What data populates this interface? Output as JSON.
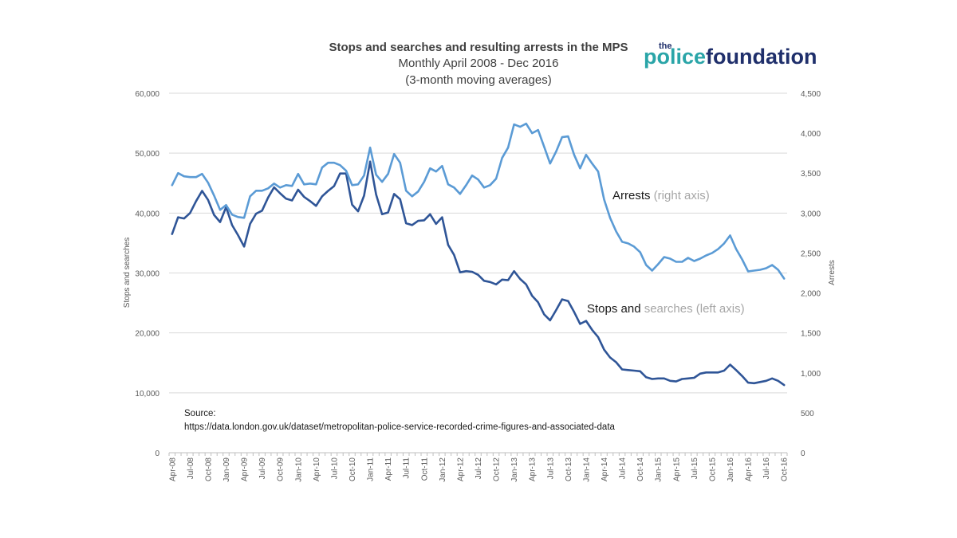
{
  "chart_data": {
    "type": "line",
    "title": "Stops and searches and resulting arrests in the MPS",
    "subtitle": "Monthly April 2008 - Dec 2016",
    "subtitle2": "(3-month moving averages)",
    "ylabel_left": "Stops and searches",
    "ylabel_right": "Arrests",
    "ylim_left": [
      0,
      60000
    ],
    "ylim_right": [
      0,
      4500
    ],
    "yticks_left": [
      "0",
      "10,000",
      "20,000",
      "30,000",
      "40,000",
      "50,000",
      "60,000"
    ],
    "yticks_right": [
      "0",
      "500",
      "1,000",
      "1,500",
      "2,000",
      "2,500",
      "3,000",
      "3,500",
      "4,000",
      "4,500"
    ],
    "grid": true,
    "x_tick_labels": [
      "Apr-08",
      "Jul-08",
      "Oct-08",
      "Jan-09",
      "Apr-09",
      "Jul-09",
      "Oct-09",
      "Jan-10",
      "Apr-10",
      "Jul-10",
      "Oct-10",
      "Jan-11",
      "Apr-11",
      "Jul-11",
      "Oct-11",
      "Jan-12",
      "Apr-12",
      "Jul-12",
      "Oct-12",
      "Jan-13",
      "Apr-13",
      "Jul-13",
      "Oct-13",
      "Jan-14",
      "Apr-14",
      "Jul-14",
      "Oct-14",
      "Jan-15",
      "Apr-15",
      "Jul-15",
      "Oct-15",
      "Jan-16",
      "Apr-16",
      "Jul-16",
      "Oct-16"
    ],
    "series": [
      {
        "name": "Stops and searches",
        "axis": "left",
        "color": "#2f5597",
        "values": [
          36500,
          39300,
          39100,
          40000,
          42000,
          43700,
          42200,
          39700,
          38500,
          41000,
          38000,
          36300,
          34400,
          38200,
          39900,
          40400,
          42600,
          44300,
          43300,
          42400,
          42100,
          43900,
          42700,
          42000,
          41200,
          42800,
          43700,
          44500,
          46600,
          46600,
          41400,
          40300,
          42900,
          48600,
          43100,
          39800,
          40100,
          43200,
          42300,
          38300,
          38000,
          38700,
          38800,
          39800,
          38200,
          39300,
          34700,
          33000,
          30100,
          30300,
          30200,
          29700,
          28700,
          28500,
          28100,
          28900,
          28800,
          30300,
          29000,
          28100,
          26200,
          25100,
          23100,
          22100,
          23800,
          25600,
          25300,
          23500,
          21500,
          22000,
          20500,
          19300,
          17200,
          15900,
          15100,
          13900,
          13800,
          13700,
          13600,
          12600,
          12300,
          12400,
          12400,
          12000,
          11900,
          12300,
          12400,
          12500,
          13200,
          13400,
          13400,
          13400,
          13700,
          14700,
          13800,
          12800,
          11700,
          11600,
          11800,
          12000,
          12400,
          12000,
          11300
        ]
      },
      {
        "name": "Arrests",
        "axis": "right",
        "color": "#5b9bd5",
        "values": [
          3350,
          3500,
          3460,
          3450,
          3450,
          3490,
          3380,
          3220,
          3040,
          3100,
          2980,
          2950,
          2940,
          3210,
          3280,
          3280,
          3310,
          3370,
          3320,
          3350,
          3340,
          3490,
          3360,
          3370,
          3360,
          3570,
          3630,
          3630,
          3600,
          3530,
          3350,
          3360,
          3470,
          3820,
          3480,
          3390,
          3490,
          3740,
          3630,
          3280,
          3210,
          3270,
          3390,
          3560,
          3520,
          3590,
          3360,
          3320,
          3240,
          3350,
          3470,
          3420,
          3320,
          3350,
          3430,
          3690,
          3820,
          4110,
          4080,
          4120,
          4000,
          4040,
          3830,
          3620,
          3770,
          3950,
          3960,
          3730,
          3560,
          3730,
          3620,
          3520,
          3170,
          2940,
          2770,
          2640,
          2620,
          2580,
          2510,
          2350,
          2280,
          2360,
          2450,
          2430,
          2390,
          2390,
          2440,
          2400,
          2430,
          2470,
          2500,
          2550,
          2620,
          2720,
          2550,
          2420,
          2270,
          2280,
          2290,
          2310,
          2350,
          2290,
          2180
        ]
      }
    ],
    "annotations": [
      {
        "dark": "Arrests",
        "grey": " (right axis)"
      },
      {
        "dark": "Stops and ",
        "grey": "searches (left axis)"
      }
    ],
    "source_label": "Source:",
    "source_url": "https://data.london.gov.uk/dataset/metropolitan-police-service-recorded-crime-figures-and-associated-data"
  },
  "logo": {
    "line1": "the",
    "word1": "police",
    "word2": "foundation"
  }
}
